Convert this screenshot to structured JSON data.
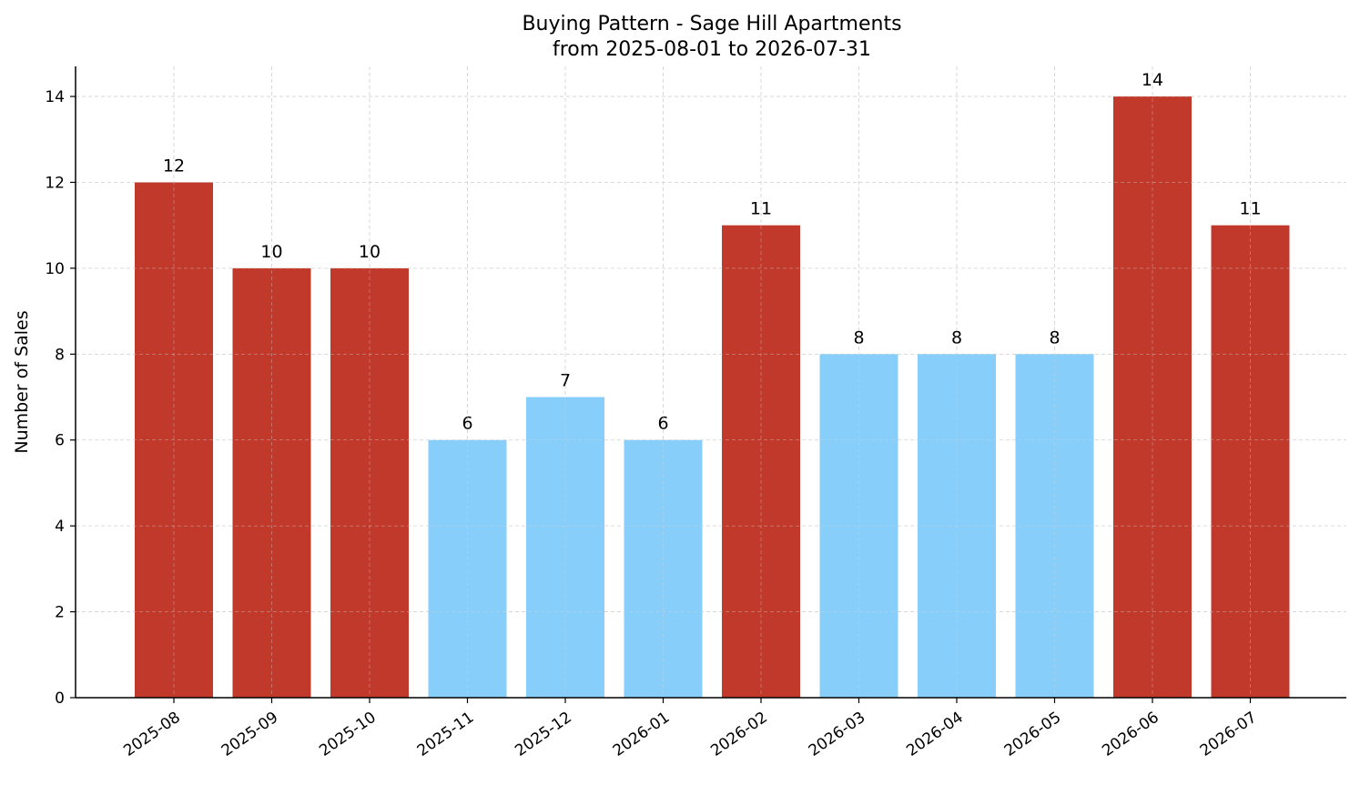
{
  "chart_data": {
    "type": "bar",
    "title": "Buying Pattern - Sage Hill Apartments",
    "subtitle": "from 2025-08-01 to 2026-07-31",
    "xlabel": "",
    "ylabel": "Number of Sales",
    "categories": [
      "2025-08",
      "2025-09",
      "2025-10",
      "2025-11",
      "2025-12",
      "2026-01",
      "2026-02",
      "2026-03",
      "2026-04",
      "2026-05",
      "2026-06",
      "2026-07"
    ],
    "values": [
      12,
      10,
      10,
      6,
      7,
      6,
      11,
      8,
      8,
      8,
      14,
      11
    ],
    "ylim": [
      0,
      14.7
    ],
    "yticks": [
      0,
      2,
      4,
      6,
      8,
      10,
      12,
      14
    ],
    "grid": true,
    "colors": {
      "high": "#c0392b",
      "low": "#87cefa",
      "grid": "#d3d3d3",
      "axis": "#000000"
    },
    "color_threshold": 10
  }
}
